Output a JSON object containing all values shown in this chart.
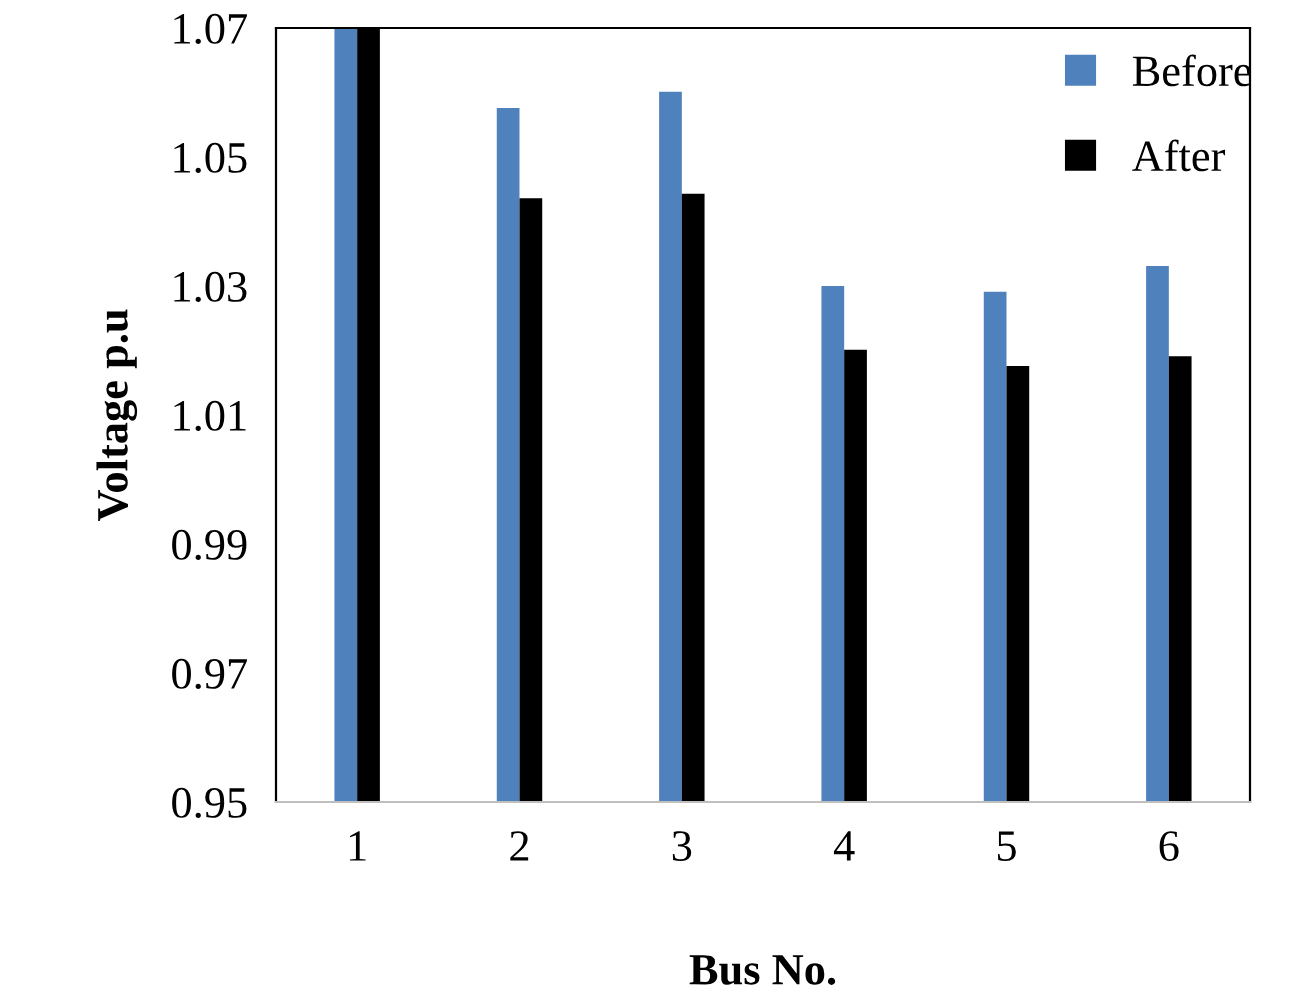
{
  "chart_data": {
    "type": "bar",
    "xlabel": "Bus No.",
    "ylabel": "Voltage p.u",
    "categories": [
      "1",
      "2",
      "3",
      "4",
      "5",
      "6"
    ],
    "series": [
      {
        "name": "Before",
        "color": "#4f81bd",
        "values": [
          1.07,
          1.0576,
          1.0601,
          1.03,
          1.0291,
          1.0331
        ]
      },
      {
        "name": "After",
        "color": "#000000",
        "values": [
          1.07,
          1.0436,
          1.0443,
          1.0201,
          1.0176,
          1.0191
        ]
      }
    ],
    "ylim": [
      0.95,
      1.07
    ],
    "yticks": [
      {
        "value": 0.95,
        "label": "0.95"
      },
      {
        "value": 0.97,
        "label": "0.97"
      },
      {
        "value": 0.99,
        "label": "0.99"
      },
      {
        "value": 1.01,
        "label": "1.01"
      },
      {
        "value": 1.03,
        "label": "1.03"
      },
      {
        "value": 1.05,
        "label": "1.05"
      },
      {
        "value": 1.07,
        "label": "1.07"
      }
    ],
    "grid": false,
    "legend": "top right"
  }
}
